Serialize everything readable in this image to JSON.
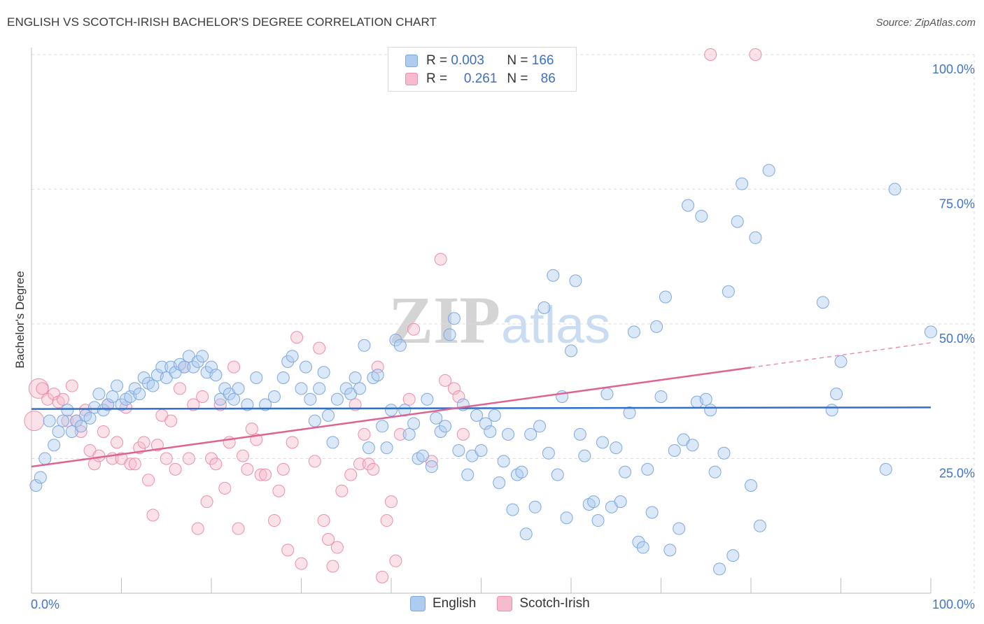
{
  "header": {
    "title": "ENGLISH VS SCOTCH-IRISH BACHELOR'S DEGREE CORRELATION CHART",
    "source": "Source: ZipAtlas.com"
  },
  "legend_top": {
    "rows": [
      {
        "r_label": "R =",
        "r_value": "0.003",
        "n_label": "N =",
        "n_value": "166"
      },
      {
        "r_label": "R =",
        "r_value": "0.261",
        "n_label": "N =",
        "n_value": "86"
      }
    ]
  },
  "legend_bottom": {
    "english": "English",
    "scotch_irish": "Scotch-Irish"
  },
  "colors": {
    "english_fill": "#aecbf0",
    "english_stroke": "#7ea8e0",
    "english_line": "#2f6fce",
    "scotch_fill": "#f6bccd",
    "scotch_stroke": "#ec8fab",
    "scotch_line": "#e0638f",
    "tick_text": "#3f74c9",
    "grid": "#dcdcdc"
  },
  "chart_data": {
    "type": "scatter",
    "title": "ENGLISH VS SCOTCH-IRISH BACHELOR'S DEGREE CORRELATION CHART",
    "xlabel": "",
    "ylabel": "Bachelor's Degree",
    "xlim": [
      0,
      100
    ],
    "ylim": [
      0,
      100
    ],
    "x_tick_labels": [
      "0.0%",
      "100.0%"
    ],
    "y_tick_labels": [
      "25.0%",
      "50.0%",
      "75.0%",
      "100.0%"
    ],
    "y_ticks": [
      25,
      50,
      75,
      100
    ],
    "grid": true,
    "legend": "top-center",
    "watermark": "ZIPatlas",
    "series": [
      {
        "name": "English",
        "R": 0.003,
        "N": 166,
        "trend": {
          "x": [
            0,
            100
          ],
          "y": [
            34.2,
            34.5
          ]
        },
        "points": [
          [
            0.5,
            20
          ],
          [
            1,
            21.5
          ],
          [
            1.5,
            25
          ],
          [
            2,
            32
          ],
          [
            2.5,
            27.5
          ],
          [
            3,
            30
          ],
          [
            3.5,
            32
          ],
          [
            4,
            34
          ],
          [
            4.5,
            30
          ],
          [
            5,
            32
          ],
          [
            5.5,
            31
          ],
          [
            6,
            33
          ],
          [
            6.5,
            32.5
          ],
          [
            7,
            34.5
          ],
          [
            7.5,
            37
          ],
          [
            8,
            34
          ],
          [
            8.5,
            35
          ],
          [
            9,
            36.5
          ],
          [
            9.5,
            38.5
          ],
          [
            10,
            35
          ],
          [
            10.5,
            36
          ],
          [
            11,
            36.5
          ],
          [
            11.5,
            38
          ],
          [
            12,
            37
          ],
          [
            12.5,
            40
          ],
          [
            13,
            39
          ],
          [
            13.5,
            38.5
          ],
          [
            14,
            40.5
          ],
          [
            14.5,
            42
          ],
          [
            15,
            40
          ],
          [
            15.5,
            42
          ],
          [
            16,
            41
          ],
          [
            16.5,
            42.5
          ],
          [
            17,
            42
          ],
          [
            17.5,
            44
          ],
          [
            18,
            42
          ],
          [
            18.5,
            43
          ],
          [
            19,
            44
          ],
          [
            19.5,
            41
          ],
          [
            20,
            42
          ],
          [
            20.5,
            40.5
          ],
          [
            21,
            36
          ],
          [
            21.5,
            38
          ],
          [
            22,
            37
          ],
          [
            22.5,
            36
          ],
          [
            23,
            38
          ],
          [
            24,
            35
          ],
          [
            25,
            40
          ],
          [
            26,
            35
          ],
          [
            27,
            36.5
          ],
          [
            28,
            40
          ],
          [
            28.5,
            43
          ],
          [
            29,
            44
          ],
          [
            30,
            38
          ],
          [
            30.5,
            42
          ],
          [
            31,
            36
          ],
          [
            31.5,
            32
          ],
          [
            32,
            38
          ],
          [
            32.5,
            41
          ],
          [
            33,
            33
          ],
          [
            33.5,
            28
          ],
          [
            34,
            36
          ],
          [
            35,
            38
          ],
          [
            35.5,
            37
          ],
          [
            36,
            40
          ],
          [
            36.5,
            38
          ],
          [
            37,
            46
          ],
          [
            37.5,
            27
          ],
          [
            38,
            40
          ],
          [
            38.5,
            40.5
          ],
          [
            39,
            31
          ],
          [
            39.5,
            27
          ],
          [
            40,
            34
          ],
          [
            40.5,
            47
          ],
          [
            41,
            46
          ],
          [
            41.5,
            34
          ],
          [
            42,
            29.5
          ],
          [
            42.5,
            31.5
          ],
          [
            43,
            25
          ],
          [
            43.5,
            25.5
          ],
          [
            44,
            36
          ],
          [
            44.5,
            23.5
          ],
          [
            45,
            32.5
          ],
          [
            45.5,
            30
          ],
          [
            46,
            31
          ],
          [
            46.5,
            48
          ],
          [
            47,
            51
          ],
          [
            47.5,
            26.5
          ],
          [
            48,
            35
          ],
          [
            48.5,
            22
          ],
          [
            49,
            25.5
          ],
          [
            49.5,
            33
          ],
          [
            50,
            26.5
          ],
          [
            50.5,
            31.5
          ],
          [
            51,
            30
          ],
          [
            51.5,
            33
          ],
          [
            52,
            20.5
          ],
          [
            52.5,
            24.5
          ],
          [
            53,
            29.5
          ],
          [
            53.5,
            15.5
          ],
          [
            54,
            22
          ],
          [
            54.5,
            22.5
          ],
          [
            55,
            11
          ],
          [
            55.5,
            29.5
          ],
          [
            56,
            16
          ],
          [
            56.5,
            31
          ],
          [
            57,
            53
          ],
          [
            57.5,
            26
          ],
          [
            58,
            59
          ],
          [
            58.5,
            22
          ],
          [
            59,
            36.5
          ],
          [
            59.5,
            14
          ],
          [
            60,
            45
          ],
          [
            60.5,
            58
          ],
          [
            61,
            29.5
          ],
          [
            61.5,
            25.5
          ],
          [
            62,
            16.5
          ],
          [
            62.5,
            17
          ],
          [
            63,
            13.5
          ],
          [
            63.5,
            28
          ],
          [
            64,
            37
          ],
          [
            64.5,
            16
          ],
          [
            65,
            27
          ],
          [
            65.5,
            17
          ],
          [
            66,
            22.5
          ],
          [
            66.5,
            33.5
          ],
          [
            67,
            48.5
          ],
          [
            67.5,
            9.5
          ],
          [
            68,
            8.5
          ],
          [
            68.5,
            23
          ],
          [
            69,
            15
          ],
          [
            69.5,
            49.5
          ],
          [
            70,
            36.5
          ],
          [
            70.5,
            55
          ],
          [
            71,
            8
          ],
          [
            71.5,
            26.5
          ],
          [
            72,
            12
          ],
          [
            72.5,
            28.5
          ],
          [
            73,
            72
          ],
          [
            73.5,
            27.5
          ],
          [
            74,
            35.5
          ],
          [
            74.5,
            70
          ],
          [
            75,
            36
          ],
          [
            75.5,
            34
          ],
          [
            76,
            22.5
          ],
          [
            76.5,
            4.5
          ],
          [
            77,
            26
          ],
          [
            77.5,
            56
          ],
          [
            78,
            7
          ],
          [
            78.5,
            69
          ],
          [
            79,
            76
          ],
          [
            80,
            20
          ],
          [
            80.5,
            66
          ],
          [
            81,
            12.5
          ],
          [
            82,
            78.5
          ],
          [
            88,
            54
          ],
          [
            89,
            34
          ],
          [
            89.5,
            37
          ],
          [
            90,
            43
          ],
          [
            95,
            23
          ],
          [
            96,
            75
          ],
          [
            100,
            48.5
          ]
        ]
      },
      {
        "name": "Scotch-Irish",
        "R": 0.261,
        "N": 86,
        "trend": {
          "x": [
            0,
            100
          ],
          "y": [
            23.5,
            46.5
          ]
        },
        "points": [
          [
            0.3,
            32
          ],
          [
            0.8,
            38
          ],
          [
            1.2,
            38
          ],
          [
            1.8,
            36
          ],
          [
            2.5,
            37
          ],
          [
            3,
            35.5
          ],
          [
            3.5,
            36
          ],
          [
            4,
            32
          ],
          [
            4.5,
            38.5
          ],
          [
            5,
            32
          ],
          [
            5.5,
            30
          ],
          [
            6,
            34
          ],
          [
            6.5,
            26.5
          ],
          [
            7,
            24
          ],
          [
            7.5,
            25.5
          ],
          [
            8,
            30
          ],
          [
            8.5,
            35
          ],
          [
            9,
            25
          ],
          [
            9.5,
            28
          ],
          [
            10,
            25
          ],
          [
            10.5,
            34.5
          ],
          [
            11,
            24
          ],
          [
            11.5,
            24
          ],
          [
            12,
            27
          ],
          [
            12.5,
            28
          ],
          [
            13,
            21
          ],
          [
            13.5,
            14.5
          ],
          [
            14,
            27.5
          ],
          [
            14.5,
            33
          ],
          [
            15,
            25
          ],
          [
            15.5,
            32
          ],
          [
            16,
            23
          ],
          [
            16.5,
            38
          ],
          [
            17,
            42
          ],
          [
            17.5,
            25
          ],
          [
            18,
            35
          ],
          [
            18.5,
            12
          ],
          [
            19,
            36.5
          ],
          [
            19.5,
            17
          ],
          [
            20,
            25
          ],
          [
            20.5,
            24
          ],
          [
            21,
            35
          ],
          [
            21.5,
            19.5
          ],
          [
            22,
            28
          ],
          [
            22.5,
            42
          ],
          [
            23,
            12
          ],
          [
            23.5,
            25.5
          ],
          [
            24,
            23
          ],
          [
            24.5,
            30.5
          ],
          [
            25,
            28.5
          ],
          [
            25.5,
            22
          ],
          [
            26,
            22
          ],
          [
            27,
            13.5
          ],
          [
            27.5,
            19
          ],
          [
            28,
            23
          ],
          [
            28.5,
            8
          ],
          [
            29,
            28
          ],
          [
            29.5,
            47.5
          ],
          [
            30,
            5.5
          ],
          [
            31.5,
            24.5
          ],
          [
            32,
            45.5
          ],
          [
            32.5,
            13.5
          ],
          [
            33,
            10
          ],
          [
            33.5,
            5
          ],
          [
            34,
            8.5
          ],
          [
            34.5,
            19
          ],
          [
            35.5,
            22
          ],
          [
            36,
            35
          ],
          [
            36.5,
            24
          ],
          [
            37,
            29.5
          ],
          [
            37.5,
            24
          ],
          [
            38,
            23
          ],
          [
            38.5,
            42
          ],
          [
            39,
            3
          ],
          [
            39.5,
            13.5
          ],
          [
            40,
            17
          ],
          [
            40.5,
            6
          ],
          [
            41,
            29.5
          ],
          [
            42,
            36
          ],
          [
            42.5,
            49
          ],
          [
            44.5,
            24.5
          ],
          [
            45.5,
            62
          ],
          [
            46,
            39.5
          ],
          [
            47,
            38
          ],
          [
            47.5,
            36.5
          ],
          [
            48,
            29.5
          ],
          [
            75.5,
            100
          ],
          [
            80.5,
            100
          ]
        ]
      }
    ]
  }
}
